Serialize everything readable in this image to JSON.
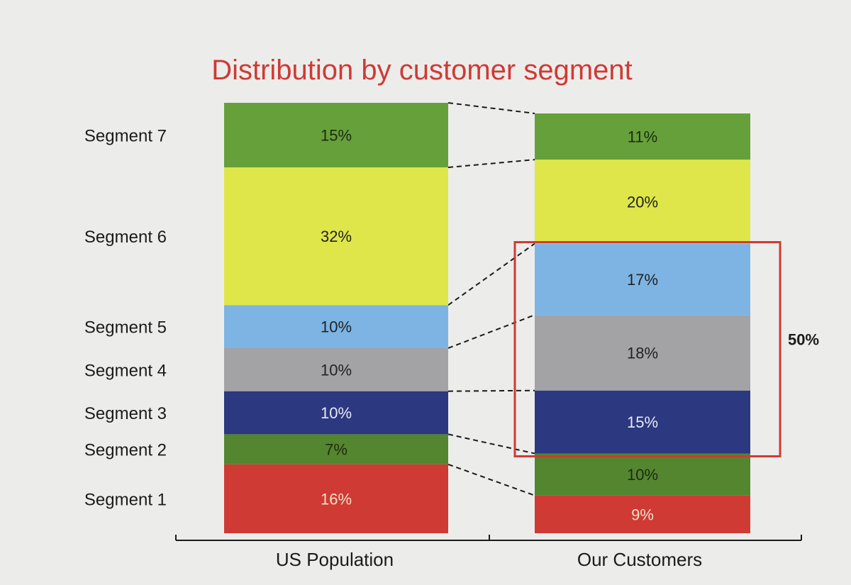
{
  "chart_data": {
    "type": "stacked-bar",
    "title": "Distribution by customer segment",
    "categories": [
      "US Population",
      "Our Customers"
    ],
    "series": [
      {
        "name": "Segment 1",
        "values": [
          16,
          9
        ],
        "color": "#cf3a34",
        "labels": [
          "16%",
          "9%"
        ],
        "label_color": "#f3e2c8"
      },
      {
        "name": "Segment 2",
        "values": [
          7,
          10
        ],
        "color": "#53862f",
        "labels": [
          "7%",
          "10%"
        ],
        "label_color": "#1f2a14"
      },
      {
        "name": "Segment 3",
        "values": [
          10,
          15
        ],
        "color": "#2c3880",
        "labels": [
          "10%",
          "15%"
        ],
        "label_color": "#e8eaf4"
      },
      {
        "name": "Segment 4",
        "values": [
          10,
          18
        ],
        "color": "#a3a3a5",
        "labels": [
          "10%",
          "18%"
        ],
        "label_color": "#222222"
      },
      {
        "name": "Segment 5",
        "values": [
          10,
          17
        ],
        "color": "#7db4e3",
        "labels": [
          "10%",
          "17%"
        ],
        "label_color": "#222222"
      },
      {
        "name": "Segment 6",
        "values": [
          32,
          20
        ],
        "color": "#dfe649",
        "labels": [
          "32%",
          "20%"
        ],
        "label_color": "#222222"
      },
      {
        "name": "Segment 7",
        "values": [
          15,
          11
        ],
        "color": "#66a03a",
        "labels": [
          "15%",
          "11%"
        ],
        "label_color": "#1c2a12"
      }
    ],
    "highlight": {
      "label": "50%",
      "series": [
        "Segment 3",
        "Segment 4",
        "Segment 5"
      ],
      "category": "Our Customers",
      "color": "#cf3a34"
    },
    "title_color": "#cf3a34",
    "connector_style": "dashed"
  }
}
